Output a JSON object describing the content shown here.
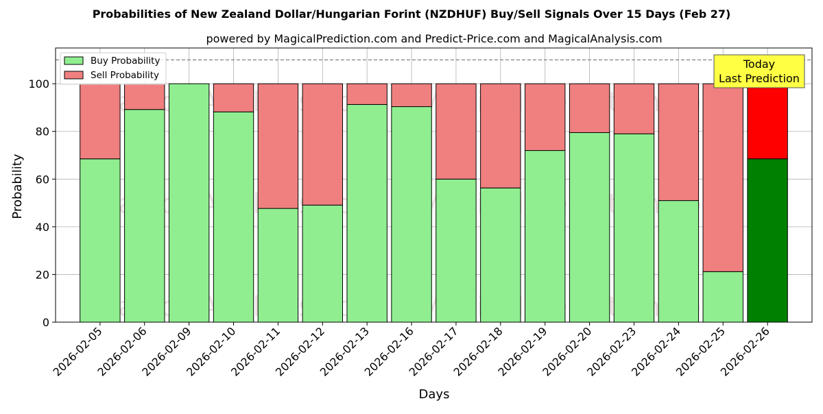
{
  "chart_data": {
    "type": "bar",
    "stacked": true,
    "title": "Probabilities of New Zealand Dollar/Hungarian Forint (NZDHUF) Buy/Sell Signals Over 15 Days (Feb 27)",
    "subtitle": "powered by MagicalPrediction.com and Predict-Price.com and MagicalAnalysis.com",
    "xlabel": "Days",
    "ylabel": "Probability",
    "ylim": [
      0,
      115
    ],
    "yticks": [
      0,
      20,
      40,
      60,
      80,
      100
    ],
    "reference_line": 110,
    "grid": true,
    "legend_position": "top-left",
    "categories": [
      "2026-02-05",
      "2026-02-06",
      "2026-02-09",
      "2026-02-10",
      "2026-02-11",
      "2026-02-12",
      "2026-02-13",
      "2026-02-16",
      "2026-02-17",
      "2026-02-18",
      "2026-02-19",
      "2026-02-20",
      "2026-02-23",
      "2026-02-24",
      "2026-02-25",
      "2026-02-26"
    ],
    "series": [
      {
        "name": "Buy Probability",
        "color": "#90ee90",
        "values": [
          68.5,
          89.2,
          100,
          88.2,
          47.7,
          49.1,
          91.3,
          90.4,
          60,
          56.3,
          72,
          79.5,
          79,
          51,
          21.2,
          68.5
        ]
      },
      {
        "name": "Sell Probability",
        "color": "#f08080",
        "values": [
          31.5,
          10.8,
          0,
          11.8,
          52.3,
          50.9,
          8.7,
          9.6,
          40,
          43.7,
          28,
          20.5,
          21,
          49,
          78.8,
          31.5
        ]
      }
    ],
    "highlight": {
      "index": 15,
      "buy_color": "#008000",
      "sell_color": "#ff0000"
    },
    "annotation": {
      "lines": [
        "Today",
        "Last Prediction"
      ],
      "bg_color": "#ffff44"
    },
    "watermark": [
      "MagicalAnalysis.com",
      "MagicalPrediction.com"
    ]
  }
}
